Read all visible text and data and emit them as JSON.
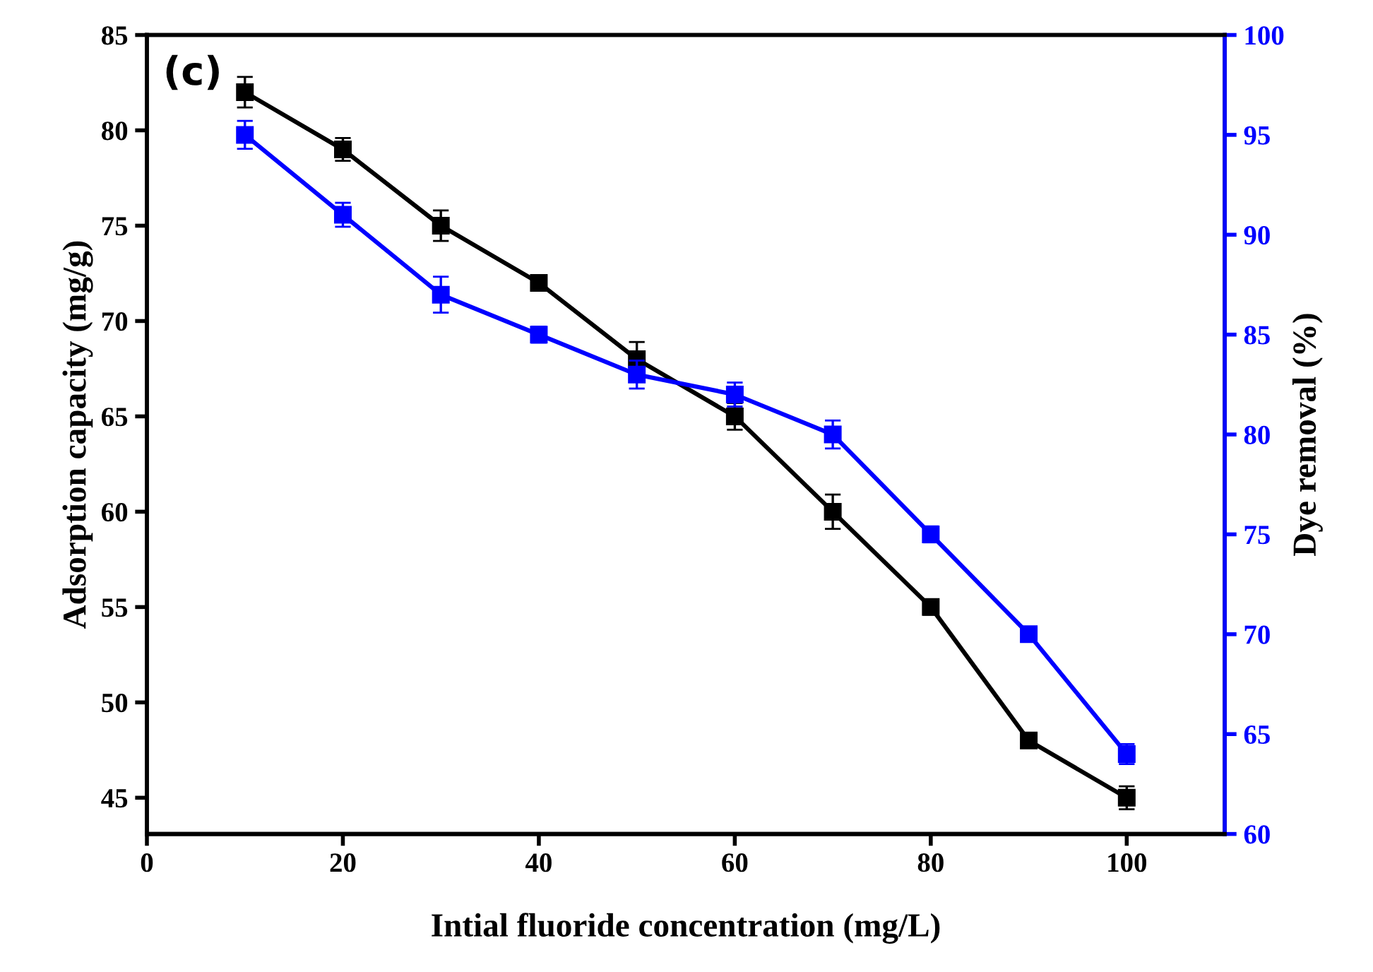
{
  "chart_data": {
    "type": "line",
    "xlabel": "Intial fluoride concentration (mg/L)",
    "ylabel": "Adsorption capacity (mg/g)",
    "y2label": "Dye removal (%)",
    "annotations": [
      "(c)"
    ],
    "x": [
      10,
      20,
      30,
      40,
      50,
      60,
      70,
      80,
      90,
      100
    ],
    "series": [
      {
        "color": "#000000",
        "values": [
          82,
          79,
          75,
          72,
          68,
          65,
          60,
          55,
          48,
          45
        ],
        "errors": [
          0.8,
          0.6,
          0.8,
          0.4,
          0.9,
          0.7,
          0.9,
          0.4,
          0.3,
          0.6
        ]
      },
      {
        "color": "#0000ff",
        "axis": "y2",
        "values": [
          95,
          91,
          87,
          85,
          83,
          82,
          80,
          75,
          70,
          64
        ],
        "errors": [
          0.7,
          0.6,
          0.9,
          0.4,
          0.7,
          0.6,
          0.7,
          0.4,
          0.2,
          0.5
        ]
      }
    ],
    "marker": "square",
    "line_style": "solid",
    "xlim": [
      0,
      110
    ],
    "xticks": [
      0,
      20,
      40,
      60,
      80,
      100
    ],
    "ylim": [
      43.1,
      85
    ],
    "yticks": [
      45,
      50,
      55,
      60,
      65,
      70,
      75,
      80,
      85
    ],
    "y2lim": [
      60,
      100
    ],
    "y2ticks": [
      60,
      65,
      70,
      75,
      80,
      85,
      90,
      95,
      100
    ],
    "grid": false,
    "legend": false
  }
}
